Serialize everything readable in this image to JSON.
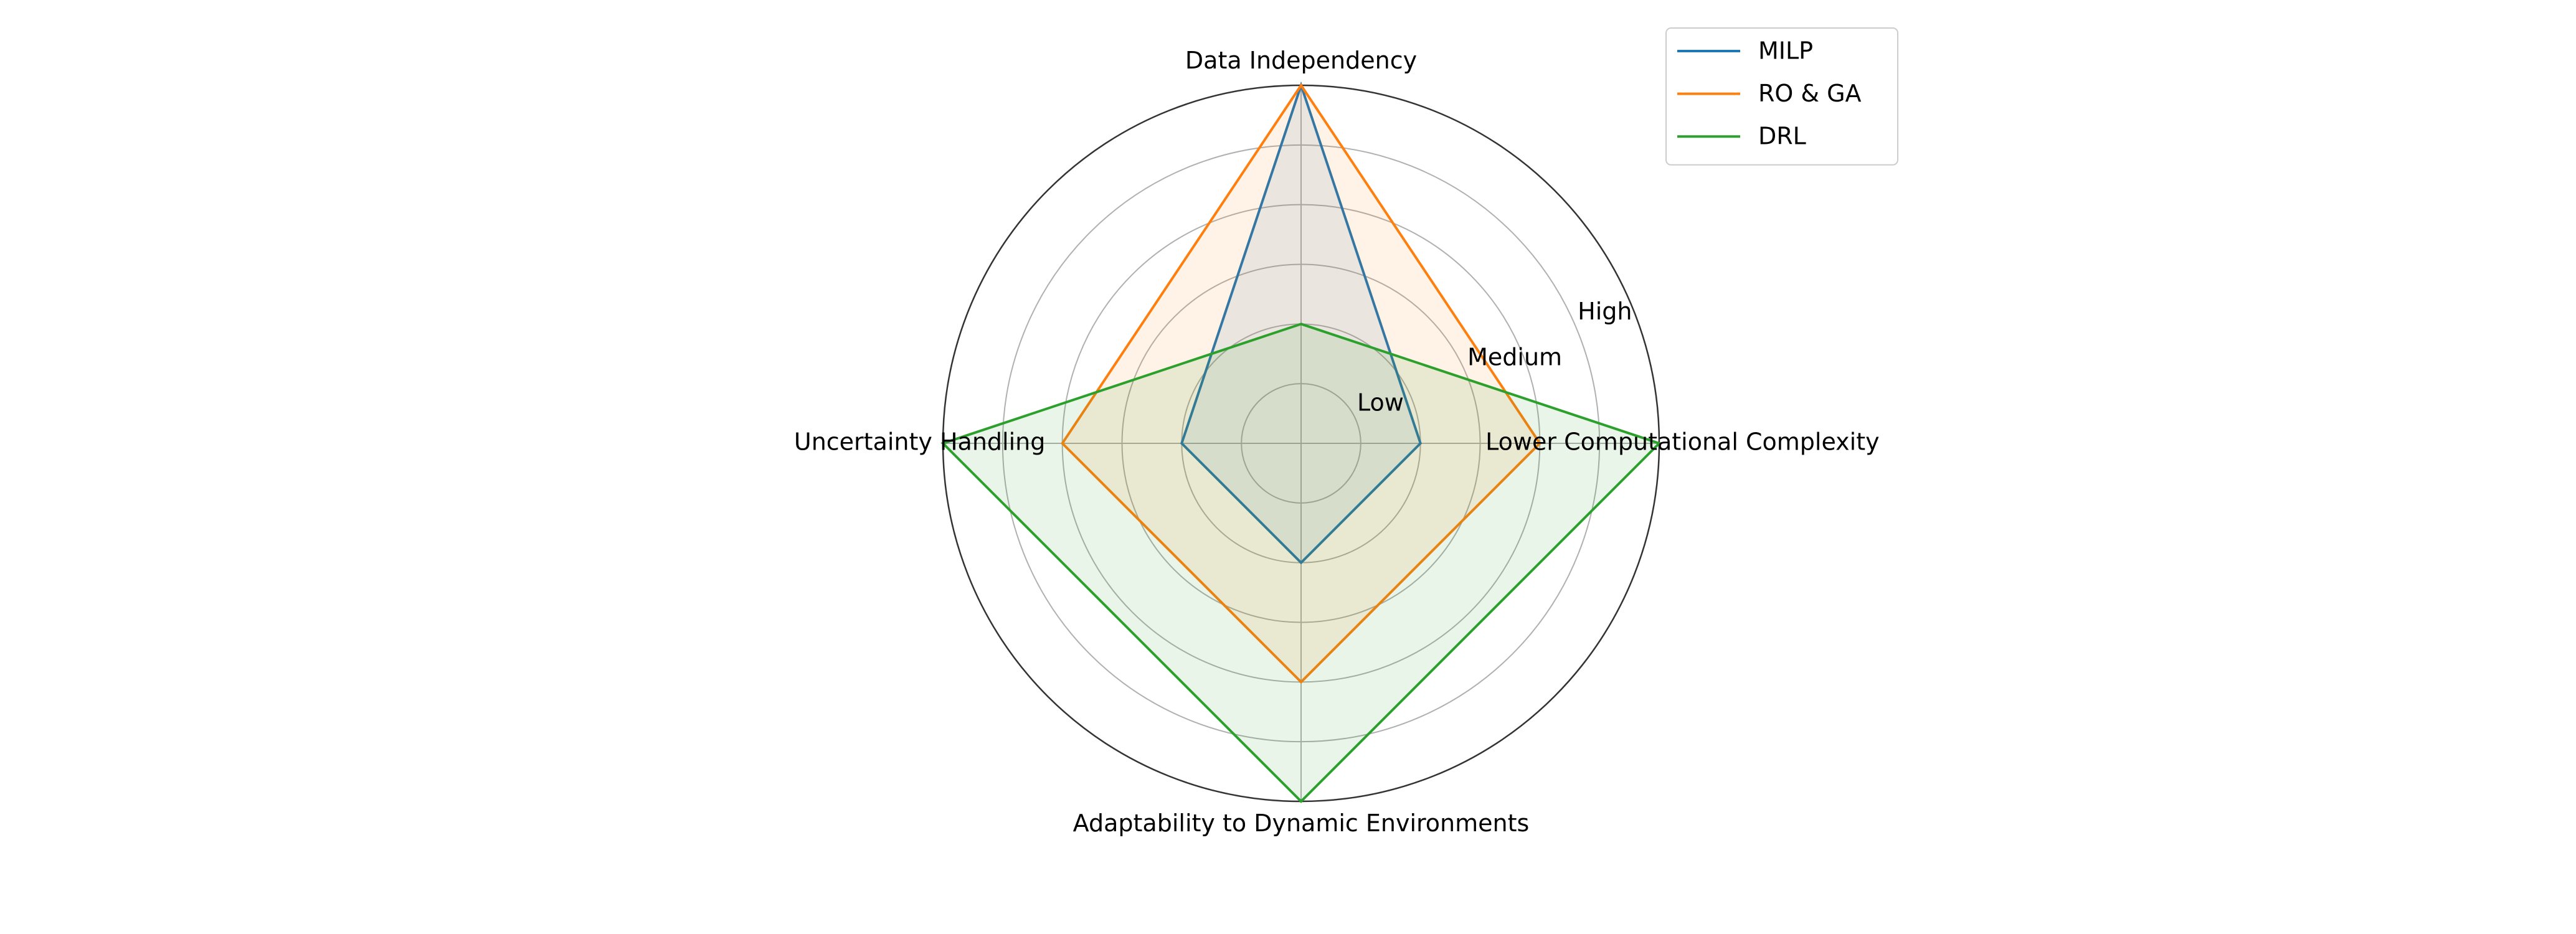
{
  "chart_data": {
    "type": "radar",
    "categories": [
      "Data Independency",
      "Lower Computational Complexity",
      "Adaptability to Dynamic Environments",
      "Uncertainty Handling"
    ],
    "series": [
      {
        "name": "MILP",
        "color": "#1f77b4",
        "values": [
          3,
          1,
          1,
          1
        ]
      },
      {
        "name": "RO & GA",
        "color": "#ff7f0e",
        "values": [
          3,
          2,
          2,
          2
        ]
      },
      {
        "name": "DRL",
        "color": "#2ca02c",
        "values": [
          1,
          3,
          3,
          3
        ]
      }
    ],
    "ylim": [
      0,
      3
    ],
    "yticks": [
      {
        "value": 1,
        "label": "Low"
      },
      {
        "value": 2,
        "label": "Medium"
      },
      {
        "value": 3,
        "label": "High"
      }
    ],
    "grid_values": [
      0.5,
      1,
      1.5,
      2,
      2.5
    ],
    "grid": true,
    "fill_opacity": 0.1,
    "legend": "upper right"
  }
}
